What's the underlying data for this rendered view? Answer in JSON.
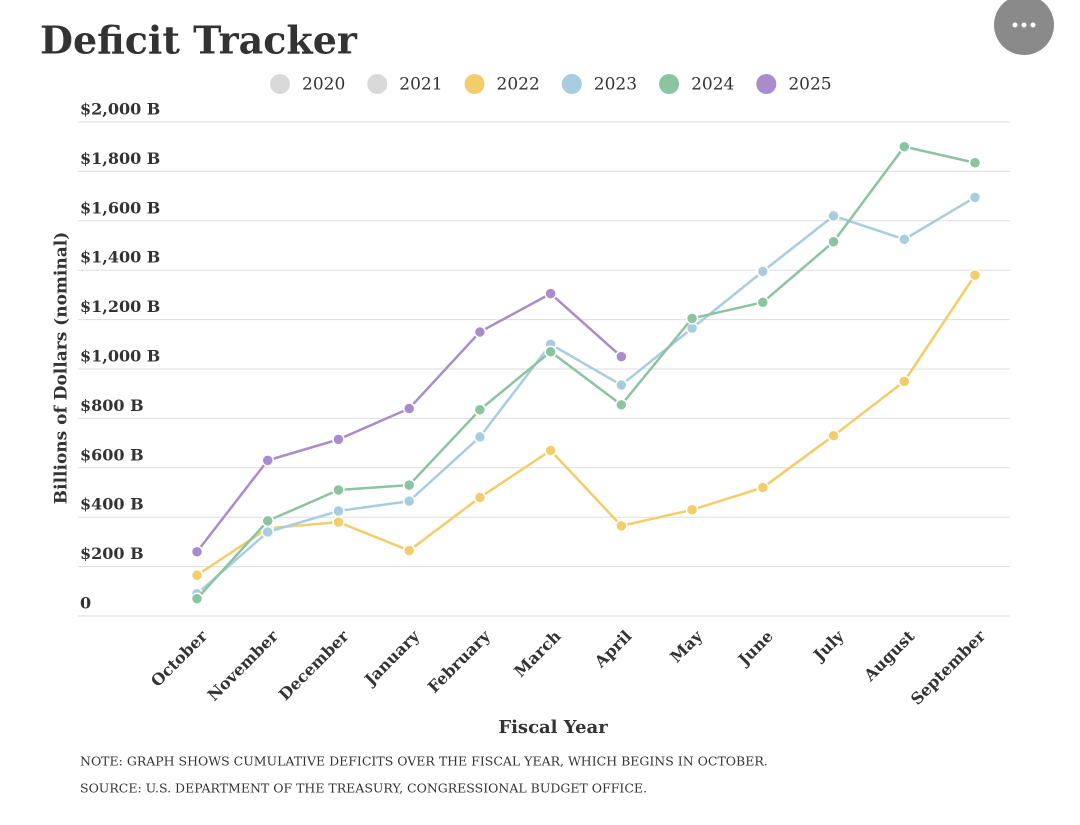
{
  "chart_data": {
    "type": "line",
    "title": "Deficit Tracker",
    "x_label": "Fiscal Year",
    "y_label": "Billions of Dollars (nominal)",
    "categories": [
      "October",
      "November",
      "December",
      "January",
      "February",
      "March",
      "April",
      "May",
      "June",
      "July",
      "August",
      "September"
    ],
    "series": [
      {
        "name": "2020",
        "color": "#d9d9d9",
        "values": [
          null,
          null,
          null,
          null,
          null,
          null,
          null,
          null,
          null,
          null,
          null,
          null
        ]
      },
      {
        "name": "2021",
        "color": "#d9d9d9",
        "values": [
          null,
          null,
          null,
          null,
          null,
          null,
          null,
          null,
          null,
          null,
          null,
          null
        ]
      },
      {
        "name": "2022",
        "color": "#f2cd6b",
        "values": [
          165,
          355,
          380,
          265,
          480,
          670,
          365,
          430,
          520,
          730,
          950,
          1380
        ]
      },
      {
        "name": "2023",
        "color": "#a9cde0",
        "values": [
          90,
          340,
          425,
          465,
          725,
          1100,
          935,
          1165,
          1395,
          1620,
          1525,
          1695
        ]
      },
      {
        "name": "2024",
        "color": "#8cc3a0",
        "values": [
          70,
          385,
          510,
          530,
          835,
          1070,
          855,
          1205,
          1270,
          1515,
          1900,
          1835
        ]
      },
      {
        "name": "2025",
        "color": "#a98ccc",
        "values": [
          260,
          630,
          715,
          840,
          1150,
          1305,
          1050,
          null,
          null,
          null,
          null,
          null
        ]
      }
    ],
    "ylim": [
      0,
      2000
    ],
    "yticks": [
      0,
      {
        "value": 200,
        "label": "$200 B"
      },
      {
        "value": 400,
        "label": "$400 B"
      },
      {
        "value": 600,
        "label": "$600 B"
      },
      {
        "value": 800,
        "label": "$800 B"
      },
      {
        "value": 1000,
        "label": "$1,000 B"
      },
      {
        "value": 1200,
        "label": "$1,200 B"
      },
      {
        "value": 1400,
        "label": "$1,400 B"
      },
      {
        "value": 1600,
        "label": "$1,600 B"
      },
      {
        "value": 1800,
        "label": "$1,800 B"
      },
      {
        "value": 2000,
        "label": "$2,000 B"
      }
    ],
    "grid": true,
    "notes": [
      "NOTE: GRAPH SHOWS CUMULATIVE DEFICITS OVER THE FISCAL YEAR, WHICH BEGINS IN OCTOBER.",
      "SOURCE: U.S. DEPARTMENT OF THE TREASURY, CONGRESSIONAL BUDGET OFFICE."
    ]
  }
}
